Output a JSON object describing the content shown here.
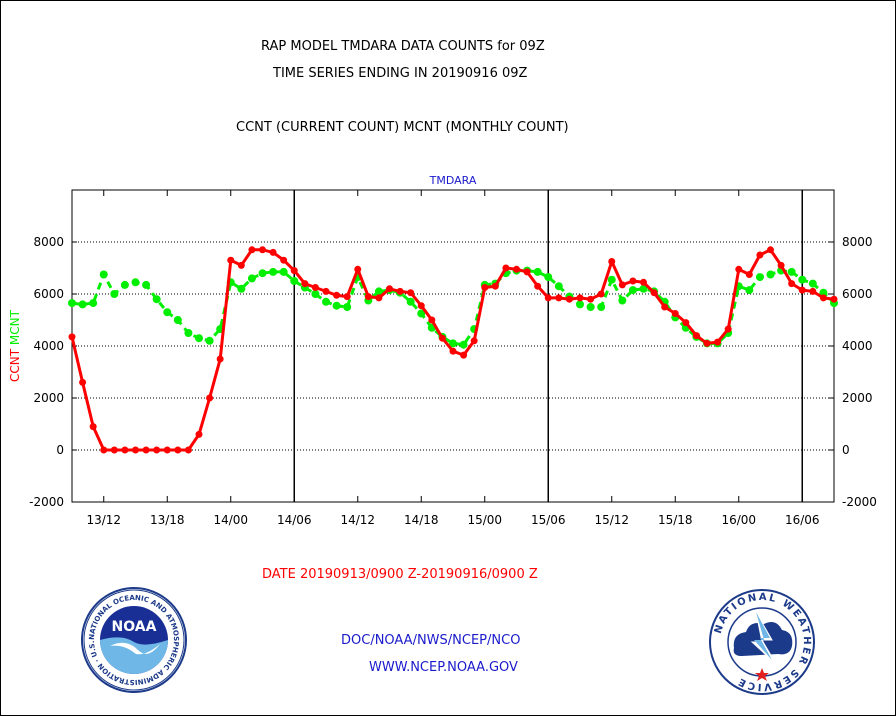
{
  "header": {
    "line1": "RAP MODEL TMDARA DATA COUNTS for 09Z",
    "line2": "TIME SERIES ENDING IN 20190916 09Z",
    "line3": "CCNT (CURRENT COUNT) MCNT (MONTHLY COUNT)"
  },
  "footer": {
    "date_range": "DATE 20190913/0900 Z-20190916/0900 Z",
    "org": "DOC/NOAA/NWS/NCEP/NCO",
    "url": "WWW.NCEP.NOAA.GOV"
  },
  "logos": {
    "noaa_text": "NOAA",
    "noaa_ring": "NATIONAL OCEANIC AND ATMOSPHERIC ADMINISTRATION · U.S. DEPARTMENT OF COMMERCE",
    "nws_ring": "NATIONAL WEATHER SERVICE"
  },
  "colors": {
    "ccnt": "#ff0000",
    "mcnt": "#00ee00",
    "label_blue": "#1a1acc",
    "axis": "#000000"
  },
  "chart_data": {
    "type": "line",
    "title": "TMDARA",
    "ylabel_left": [
      "CCNT",
      "MCNT"
    ],
    "x_start_hours": 9,
    "x_end_hours": 81,
    "ylim": [
      -2000,
      10000
    ],
    "yticks": [
      -2000,
      0,
      2000,
      4000,
      6000,
      8000
    ],
    "ytick_labels": [
      "-2000",
      "0",
      "2000",
      "4000",
      "6000",
      "8000"
    ],
    "xticks_hours": [
      12,
      18,
      24,
      30,
      36,
      42,
      48,
      54,
      60,
      66,
      72,
      78
    ],
    "xtick_labels": [
      "13/12",
      "13/18",
      "14/00",
      "14/06",
      "14/12",
      "14/18",
      "15/00",
      "15/06",
      "15/12",
      "15/18",
      "16/00",
      "16/06"
    ],
    "day_dividers_hours": [
      30,
      54,
      78
    ],
    "grid": "dotted horizontal",
    "series": [
      {
        "name": "CCNT",
        "color": "#ff0000",
        "x": [
          9,
          10,
          11,
          12,
          13,
          14,
          15,
          16,
          17,
          18,
          19,
          20,
          21,
          22,
          23,
          24,
          25,
          26,
          27,
          28,
          29,
          30,
          31,
          32,
          33,
          34,
          35,
          36,
          37,
          38,
          39,
          40,
          41,
          42,
          43,
          44,
          45,
          46,
          47,
          48,
          49,
          50,
          51,
          52,
          53,
          54,
          55,
          56,
          57,
          58,
          59,
          60,
          61,
          62,
          63,
          64,
          65,
          66,
          67,
          68,
          69,
          70,
          71,
          72,
          73,
          74,
          75,
          76,
          77,
          78,
          79,
          80,
          81
        ],
        "values": [
          4350,
          2600,
          900,
          0,
          0,
          0,
          0,
          0,
          0,
          0,
          0,
          0,
          600,
          2000,
          3500,
          7300,
          7100,
          7700,
          7700,
          7600,
          7300,
          6900,
          6400,
          6250,
          6100,
          5950,
          5900,
          6950,
          5900,
          5850,
          6200,
          6100,
          6050,
          5550,
          5000,
          4300,
          3800,
          3650,
          4200,
          6250,
          6300,
          7000,
          6950,
          6850,
          6300,
          5850,
          5850,
          5800,
          5850,
          5800,
          6000,
          7250,
          6350,
          6500,
          6450,
          6050,
          5500,
          5250,
          4900,
          4400,
          4100,
          4150,
          4650,
          6950,
          6750,
          7500,
          7700,
          7100,
          6400,
          6150,
          6100,
          5850,
          5800
        ]
      },
      {
        "name": "MCNT",
        "color": "#00ee00",
        "x": [
          9,
          10,
          11,
          12,
          13,
          14,
          15,
          16,
          17,
          18,
          19,
          20,
          21,
          22,
          23,
          24,
          25,
          26,
          27,
          28,
          29,
          30,
          31,
          32,
          33,
          34,
          35,
          36,
          37,
          38,
          39,
          40,
          41,
          42,
          43,
          44,
          45,
          46,
          47,
          48,
          49,
          50,
          51,
          52,
          53,
          54,
          55,
          56,
          57,
          58,
          59,
          60,
          61,
          62,
          63,
          64,
          65,
          66,
          67,
          68,
          69,
          70,
          71,
          72,
          73,
          74,
          75,
          76,
          77,
          78,
          79,
          80,
          81
        ],
        "values": [
          5650,
          5600,
          5650,
          6750,
          6000,
          6350,
          6450,
          6350,
          5800,
          5300,
          5000,
          4500,
          4300,
          4200,
          4650,
          6450,
          6200,
          6600,
          6800,
          6850,
          6850,
          6500,
          6250,
          6000,
          5700,
          5550,
          5500,
          6650,
          5750,
          6100,
          6150,
          6050,
          5700,
          5250,
          4700,
          4350,
          4100,
          4050,
          4650,
          6350,
          6400,
          6800,
          6900,
          6900,
          6850,
          6650,
          6300,
          5900,
          5600,
          5500,
          5500,
          6550,
          5750,
          6150,
          6200,
          6100,
          5700,
          5100,
          4700,
          4350,
          4100,
          4100,
          4500,
          6300,
          6150,
          6650,
          6750,
          6900,
          6850,
          6550,
          6400,
          6050,
          5650
        ]
      }
    ]
  }
}
